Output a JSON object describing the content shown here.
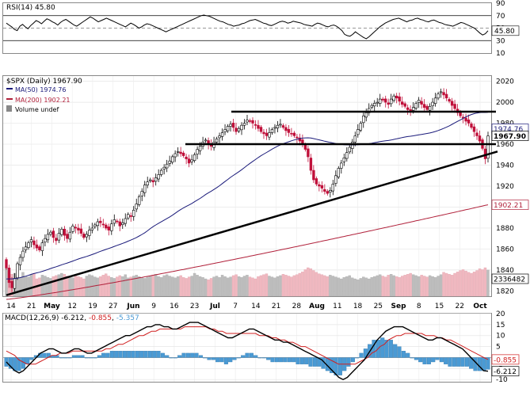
{
  "chart_data": [
    {
      "type": "line",
      "title": "RSI(14)",
      "value": 45.8,
      "value_label": "45.80",
      "ylim": [
        10,
        90
      ],
      "y_ticks": [
        10,
        30,
        50,
        70,
        90
      ],
      "ref_lines": [
        30,
        70
      ],
      "line_color": "#000000",
      "series": [
        {
          "values": [
            58,
            55,
            52,
            48,
            46,
            53,
            56,
            52,
            49,
            54,
            58,
            62,
            60,
            57,
            61,
            65,
            63,
            60,
            58,
            55,
            59,
            62,
            64,
            61,
            58,
            55,
            53,
            56,
            59,
            62,
            65,
            68,
            66,
            63,
            60,
            62,
            64,
            66,
            64,
            62,
            60,
            58,
            56,
            54,
            52,
            55,
            58,
            56,
            53,
            50,
            52,
            55,
            57,
            56,
            54,
            52,
            50,
            48,
            46,
            44,
            46,
            48,
            50,
            52,
            54,
            56,
            58,
            60,
            62,
            64,
            66,
            68,
            70,
            71,
            70,
            69,
            67,
            65,
            63,
            61,
            60,
            58,
            56,
            55,
            53,
            54,
            55,
            57,
            58,
            60,
            62,
            63,
            64,
            62,
            60,
            58,
            57,
            55,
            54,
            56,
            58,
            60,
            61,
            60,
            58,
            59,
            61,
            60,
            59,
            58,
            56,
            55,
            54,
            53,
            56,
            58,
            57,
            55,
            53,
            52,
            54,
            55,
            53,
            50,
            46,
            40,
            38,
            37,
            40,
            44,
            41,
            38,
            35,
            33,
            36,
            40,
            44,
            48,
            52,
            55,
            58,
            60,
            62,
            64,
            65,
            66,
            64,
            62,
            60,
            62,
            63,
            65,
            66,
            64,
            63,
            61,
            60,
            62,
            63,
            61,
            59,
            58,
            56,
            55,
            54,
            53,
            55,
            57,
            59,
            58,
            56,
            54,
            52,
            50,
            46,
            42,
            39,
            41,
            45.8
          ]
        }
      ]
    },
    {
      "type": "candlestick",
      "title": "$SPX (Daily) 1967.90",
      "legend": [
        {
          "label": "MA(50) 1974.76",
          "color": "#1a1a7a"
        },
        {
          "label": "MA(200) 1902.21",
          "color": "#b0203a"
        },
        {
          "label": "Volume undef",
          "color": "#888888"
        }
      ],
      "x_tick_labels": [
        "14",
        "21",
        "May",
        "12",
        "19",
        "27",
        "Jun",
        "9",
        "16",
        "23",
        "Jul",
        "7",
        "14",
        "21",
        "28",
        "Aug",
        "11",
        "18",
        "25",
        "Sep",
        "8",
        "15",
        "22",
        "Oct"
      ],
      "y_ticks": [
        1820,
        1840,
        1860,
        1880,
        1900,
        1920,
        1940,
        1960,
        1980,
        2000,
        2020
      ],
      "ylim": [
        1815,
        2025
      ],
      "value_tags": [
        {
          "label": "1974.76",
          "value": 1974.76,
          "color": "#1a1a7a"
        },
        {
          "label": "1967.90",
          "value": 1967.9,
          "color": "#000000",
          "bold": true
        },
        {
          "label": "1902.21",
          "value": 1902.21,
          "color": "#b0203a"
        },
        {
          "label": "2336482",
          "value": 1836.5,
          "color": "#000000"
        }
      ],
      "horizontal_lines": [
        1991,
        1960
      ],
      "trendline": {
        "from_index": 0,
        "from_value": 1816,
        "to_index": 174,
        "to_value": 1953
      },
      "close": [
        1842,
        1828,
        1823,
        1832,
        1846,
        1852,
        1858,
        1862,
        1866,
        1869,
        1864,
        1861,
        1859,
        1866,
        1870,
        1874,
        1876,
        1871,
        1868,
        1875,
        1879,
        1873,
        1870,
        1876,
        1882,
        1880,
        1878,
        1875,
        1871,
        1874,
        1878,
        1880,
        1883,
        1886,
        1885,
        1883,
        1880,
        1878,
        1884,
        1888,
        1886,
        1882,
        1885,
        1889,
        1893,
        1891,
        1897,
        1903,
        1910,
        1915,
        1921,
        1924,
        1926,
        1924,
        1928,
        1931,
        1935,
        1938,
        1941,
        1944,
        1948,
        1951,
        1953,
        1951,
        1949,
        1946,
        1942,
        1945,
        1950,
        1955,
        1958,
        1962,
        1964,
        1960,
        1958,
        1962,
        1965,
        1968,
        1971,
        1974,
        1977,
        1979,
        1976,
        1972,
        1975,
        1978,
        1980,
        1983,
        1982,
        1980,
        1978,
        1975,
        1972,
        1970,
        1968,
        1971,
        1974,
        1976,
        1978,
        1979,
        1976,
        1973,
        1971,
        1970,
        1968,
        1966,
        1963,
        1960,
        1955,
        1948,
        1935,
        1926,
        1922,
        1920,
        1918,
        1915,
        1913,
        1916,
        1922,
        1930,
        1937,
        1942,
        1947,
        1952,
        1957,
        1962,
        1968,
        1974,
        1980,
        1987,
        1990,
        1994,
        1997,
        1999,
        2000,
        2003,
        2002,
        2000,
        1998,
        2003,
        2006,
        2004,
        2001,
        1998,
        1996,
        1993,
        1991,
        1995,
        1999,
        2002,
        1998,
        1995,
        1993,
        1996,
        2000,
        2004,
        2008,
        2010,
        2007,
        2004,
        2001,
        1997,
        1994,
        1990,
        1987,
        1985,
        1982,
        1980,
        1976,
        1972,
        1968,
        1963,
        1956,
        1946,
        1967.9
      ]
    },
    {
      "type": "bar",
      "title": "Volume",
      "note": "volume bars plotted in lower part of price panel",
      "values_relative": [
        0.62,
        0.55,
        0.48,
        0.5,
        0.45,
        0.4,
        0.52,
        0.43,
        0.42,
        0.47,
        0.5,
        0.38,
        0.4,
        0.46,
        0.44,
        0.41,
        0.39,
        0.43,
        0.45,
        0.47,
        0.5,
        0.48,
        0.44,
        0.42,
        0.4,
        0.46,
        0.43,
        0.41,
        0.38,
        0.44,
        0.47,
        0.45,
        0.42,
        0.4,
        0.43,
        0.46,
        0.49,
        0.44,
        0.41,
        0.39,
        0.42,
        0.45,
        0.43,
        0.47,
        0.4,
        0.42,
        0.44,
        0.46,
        0.43,
        0.41,
        0.39,
        0.42,
        0.44,
        0.46,
        0.48,
        0.43,
        0.41,
        0.45,
        0.47,
        0.44,
        0.42,
        0.4,
        0.43,
        0.45,
        0.41,
        0.39,
        0.42,
        0.44,
        0.5,
        0.46,
        0.43,
        0.41,
        0.38,
        0.36,
        0.39,
        0.42,
        0.44,
        0.41,
        0.46,
        0.43,
        0.4,
        0.42,
        0.45,
        0.47,
        0.43,
        0.41,
        0.44,
        0.46,
        0.42,
        0.4,
        0.38,
        0.43,
        0.45,
        0.47,
        0.49,
        0.44,
        0.42,
        0.4,
        0.43,
        0.45,
        0.48,
        0.46,
        0.44,
        0.42,
        0.45,
        0.47,
        0.5,
        0.53,
        0.58,
        0.62,
        0.6,
        0.56,
        0.52,
        0.49,
        0.47,
        0.45,
        0.43,
        0.46,
        0.44,
        0.42,
        0.4,
        0.38,
        0.41,
        0.43,
        0.45,
        0.4,
        0.38,
        0.36,
        0.39,
        0.42,
        0.4,
        0.38,
        0.41,
        0.43,
        0.45,
        0.47,
        0.44,
        0.42,
        0.46,
        0.48,
        0.45,
        0.43,
        0.41,
        0.44,
        0.46,
        0.48,
        0.5,
        0.47,
        0.45,
        0.43,
        0.46,
        0.44,
        0.42,
        0.45,
        0.43,
        0.41,
        0.44,
        0.47,
        0.52,
        0.5,
        0.48,
        0.46,
        0.5,
        0.53,
        0.56,
        0.58,
        0.55,
        0.52,
        0.5,
        0.53,
        0.56,
        0.6,
        0.58,
        0.62,
        0.57
      ]
    },
    {
      "type": "line",
      "title": "MACD(12,26,9)",
      "title_value": "-6.212",
      "signal_value": "-0.855",
      "histogram_value": "-5.357",
      "y_ticks": [
        -10,
        -5,
        0,
        5,
        10,
        15,
        20
      ],
      "ylim": [
        -11,
        20
      ],
      "value_tags": [
        {
          "label": "-0.855",
          "value": -0.855,
          "color": "#d02020"
        },
        {
          "label": "-6.212",
          "value": -6.212,
          "color": "#000000"
        }
      ],
      "series": [
        {
          "name": "MACD(12,26,9)",
          "color": "#000000",
          "values": [
            -2,
            -4,
            -6,
            -7,
            -6,
            -4,
            -2,
            0,
            2,
            3,
            4,
            4,
            3,
            2,
            2,
            3,
            4,
            4,
            3,
            2,
            2,
            3,
            4,
            5,
            6,
            7,
            8,
            9,
            10,
            10,
            11,
            12,
            13,
            14,
            14,
            15,
            15,
            14,
            14,
            13,
            13,
            14,
            15,
            16,
            16,
            16,
            15,
            14,
            13,
            12,
            11,
            10,
            9,
            9,
            10,
            11,
            12,
            13,
            13,
            12,
            11,
            10,
            9,
            8,
            8,
            7,
            7,
            6,
            5,
            4,
            3,
            2,
            1,
            0,
            -1,
            -3,
            -5,
            -7,
            -9,
            -10,
            -9,
            -7,
            -5,
            -3,
            -1,
            2,
            5,
            8,
            10,
            12,
            13,
            14,
            14,
            14,
            13,
            12,
            11,
            10,
            9,
            8,
            8,
            9,
            9,
            8,
            7,
            6,
            5,
            4,
            2,
            0,
            -2,
            -4,
            -6,
            -6.212
          ]
        },
        {
          "name": "signal",
          "color": "#d02020",
          "values": [
            3,
            2,
            1,
            -1,
            -2,
            -3,
            -3,
            -3,
            -2,
            -1,
            0,
            1,
            1,
            2,
            2,
            2,
            3,
            3,
            3,
            3,
            3,
            3,
            3,
            3,
            4,
            4,
            5,
            6,
            6,
            7,
            8,
            9,
            10,
            10,
            11,
            12,
            12,
            13,
            13,
            13,
            13,
            13,
            13,
            14,
            14,
            14,
            14,
            14,
            14,
            13,
            13,
            12,
            12,
            11,
            11,
            11,
            11,
            11,
            11,
            11,
            11,
            10,
            10,
            10,
            9,
            9,
            8,
            8,
            7,
            7,
            6,
            5,
            5,
            4,
            3,
            2,
            1,
            0,
            -1,
            -2,
            -3,
            -3,
            -3,
            -3,
            -3,
            -2,
            -1,
            0,
            2,
            3,
            5,
            6,
            8,
            9,
            10,
            10,
            11,
            11,
            11,
            11,
            11,
            10,
            10,
            10,
            9,
            9,
            8,
            8,
            7,
            6,
            5,
            4,
            3,
            2,
            1,
            0,
            -0.855
          ]
        },
        {
          "name": "histogram",
          "color": "#4a9ad4",
          "values": [
            -4,
            -5,
            -6,
            -6,
            -5,
            -3,
            -1,
            1,
            2,
            2,
            2,
            1,
            1,
            0,
            0,
            0,
            1,
            1,
            1,
            0,
            0,
            0,
            1,
            2,
            2,
            3,
            3,
            3,
            3,
            3,
            3,
            3,
            3,
            3,
            3,
            3,
            3,
            2,
            1,
            0,
            0,
            1,
            2,
            2,
            2,
            2,
            1,
            0,
            -1,
            -1,
            -2,
            -2,
            -3,
            -2,
            -1,
            0,
            1,
            2,
            2,
            1,
            0,
            0,
            -1,
            -2,
            -2,
            -2,
            -2,
            -2,
            -2,
            -3,
            -3,
            -3,
            -4,
            -4,
            -4,
            -5,
            -6,
            -7,
            -8,
            -8,
            -6,
            -4,
            -2,
            0,
            2,
            4,
            6,
            8,
            8,
            9,
            8,
            8,
            6,
            5,
            3,
            2,
            0,
            -1,
            -2,
            -3,
            -3,
            -2,
            -1,
            -2,
            -3,
            -4,
            -4,
            -4,
            -4,
            -4,
            -5,
            -6,
            -6,
            -6,
            -5.357
          ]
        }
      ]
    }
  ]
}
